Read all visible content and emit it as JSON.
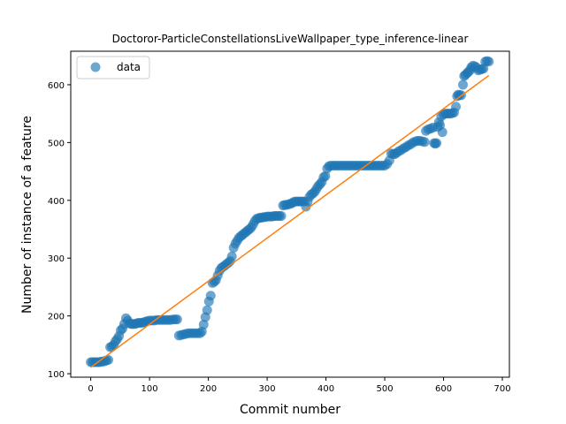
{
  "chart_data": {
    "type": "scatter",
    "title": "Doctoror-ParticleConstellationsLiveWallpaper_type_inference-linear",
    "xlabel": "Commit number",
    "ylabel": "Number of instance of a feature",
    "xlim": [
      -34,
      712
    ],
    "ylim": [
      94,
      658
    ],
    "xticks": [
      0,
      100,
      200,
      300,
      400,
      500,
      600,
      700
    ],
    "yticks": [
      100,
      200,
      300,
      400,
      500,
      600
    ],
    "legend": {
      "position": "top-left",
      "entries": [
        "data"
      ]
    },
    "colors": {
      "data": "#1f77b4",
      "fit": "#ff7f0e"
    },
    "series": [
      {
        "name": "data",
        "kind": "scatter",
        "points": [
          [
            0,
            120
          ],
          [
            3,
            120
          ],
          [
            6,
            120
          ],
          [
            9,
            120
          ],
          [
            12,
            120
          ],
          [
            15,
            120
          ],
          [
            18,
            121
          ],
          [
            21,
            121
          ],
          [
            24,
            122
          ],
          [
            27,
            123
          ],
          [
            30,
            124
          ],
          [
            33,
            146
          ],
          [
            36,
            147
          ],
          [
            39,
            150
          ],
          [
            42,
            156
          ],
          [
            45,
            160
          ],
          [
            48,
            165
          ],
          [
            51,
            175
          ],
          [
            54,
            178
          ],
          [
            57,
            186
          ],
          [
            60,
            196
          ],
          [
            63,
            192
          ],
          [
            66,
            187
          ],
          [
            69,
            186
          ],
          [
            72,
            186
          ],
          [
            75,
            186
          ],
          [
            78,
            187
          ],
          [
            81,
            188
          ],
          [
            84,
            188
          ],
          [
            87,
            188
          ],
          [
            90,
            189
          ],
          [
            93,
            190
          ],
          [
            96,
            191
          ],
          [
            100,
            192
          ],
          [
            104,
            192
          ],
          [
            108,
            192
          ],
          [
            112,
            193
          ],
          [
            116,
            193
          ],
          [
            120,
            193
          ],
          [
            124,
            193
          ],
          [
            128,
            193
          ],
          [
            132,
            193
          ],
          [
            136,
            193
          ],
          [
            140,
            194
          ],
          [
            144,
            194
          ],
          [
            147,
            194
          ],
          [
            150,
            166
          ],
          [
            154,
            167
          ],
          [
            158,
            168
          ],
          [
            162,
            169
          ],
          [
            166,
            170
          ],
          [
            170,
            170
          ],
          [
            174,
            170
          ],
          [
            178,
            170
          ],
          [
            182,
            170
          ],
          [
            186,
            170
          ],
          [
            189,
            173
          ],
          [
            192,
            185
          ],
          [
            195,
            198
          ],
          [
            198,
            210
          ],
          [
            201,
            225
          ],
          [
            204,
            235
          ],
          [
            207,
            257
          ],
          [
            210,
            259
          ],
          [
            213,
            262
          ],
          [
            216,
            270
          ],
          [
            219,
            278
          ],
          [
            222,
            283
          ],
          [
            225,
            285
          ],
          [
            228,
            287
          ],
          [
            231,
            290
          ],
          [
            234,
            292
          ],
          [
            237,
            295
          ],
          [
            240,
            303
          ],
          [
            243,
            318
          ],
          [
            246,
            325
          ],
          [
            249,
            330
          ],
          [
            252,
            335
          ],
          [
            255,
            338
          ],
          [
            258,
            340
          ],
          [
            261,
            343
          ],
          [
            264,
            345
          ],
          [
            267,
            348
          ],
          [
            270,
            350
          ],
          [
            273,
            353
          ],
          [
            276,
            358
          ],
          [
            279,
            364
          ],
          [
            282,
            368
          ],
          [
            285,
            369
          ],
          [
            288,
            370
          ],
          [
            291,
            370
          ],
          [
            294,
            371
          ],
          [
            297,
            371
          ],
          [
            300,
            372
          ],
          [
            303,
            372
          ],
          [
            306,
            372
          ],
          [
            309,
            372
          ],
          [
            312,
            373
          ],
          [
            315,
            373
          ],
          [
            318,
            373
          ],
          [
            321,
            373
          ],
          [
            324,
            373
          ],
          [
            327,
            391
          ],
          [
            330,
            392
          ],
          [
            333,
            392
          ],
          [
            336,
            393
          ],
          [
            339,
            394
          ],
          [
            342,
            395
          ],
          [
            345,
            397
          ],
          [
            348,
            398
          ],
          [
            351,
            398
          ],
          [
            354,
            398
          ],
          [
            357,
            398
          ],
          [
            360,
            398
          ],
          [
            363,
            398
          ],
          [
            366,
            389
          ],
          [
            369,
            398
          ],
          [
            372,
            406
          ],
          [
            375,
            410
          ],
          [
            378,
            412
          ],
          [
            381,
            415
          ],
          [
            384,
            420
          ],
          [
            387,
            425
          ],
          [
            390,
            428
          ],
          [
            393,
            432
          ],
          [
            396,
            440
          ],
          [
            399,
            442
          ],
          [
            402,
            455
          ],
          [
            405,
            459
          ],
          [
            408,
            460
          ],
          [
            412,
            460
          ],
          [
            416,
            460
          ],
          [
            420,
            460
          ],
          [
            424,
            460
          ],
          [
            428,
            460
          ],
          [
            432,
            460
          ],
          [
            436,
            460
          ],
          [
            440,
            460
          ],
          [
            444,
            460
          ],
          [
            448,
            460
          ],
          [
            452,
            460
          ],
          [
            456,
            460
          ],
          [
            460,
            460
          ],
          [
            464,
            460
          ],
          [
            468,
            460
          ],
          [
            472,
            460
          ],
          [
            476,
            460
          ],
          [
            480,
            460
          ],
          [
            484,
            460
          ],
          [
            488,
            460
          ],
          [
            492,
            460
          ],
          [
            496,
            460
          ],
          [
            500,
            460
          ],
          [
            504,
            463
          ],
          [
            508,
            469
          ],
          [
            511,
            481
          ],
          [
            514,
            480
          ],
          [
            517,
            480
          ],
          [
            520,
            482
          ],
          [
            524,
            485
          ],
          [
            528,
            487
          ],
          [
            532,
            490
          ],
          [
            536,
            492
          ],
          [
            540,
            495
          ],
          [
            544,
            497
          ],
          [
            548,
            500
          ],
          [
            552,
            502
          ],
          [
            556,
            503
          ],
          [
            560,
            503
          ],
          [
            564,
            502
          ],
          [
            568,
            501
          ],
          [
            570,
            520
          ],
          [
            574,
            523
          ],
          [
            578,
            524
          ],
          [
            582,
            526
          ],
          [
            584,
            499
          ],
          [
            586,
            498
          ],
          [
            588,
            499
          ],
          [
            590,
            527
          ],
          [
            592,
            535
          ],
          [
            594,
            530
          ],
          [
            596,
            545
          ],
          [
            598,
            518
          ],
          [
            600,
            549
          ],
          [
            603,
            550
          ],
          [
            606,
            550
          ],
          [
            609,
            550
          ],
          [
            612,
            550
          ],
          [
            615,
            551
          ],
          [
            618,
            552
          ],
          [
            621,
            562
          ],
          [
            623,
            580
          ],
          [
            625,
            583
          ],
          [
            627,
            582
          ],
          [
            630,
            582
          ],
          [
            633,
            600
          ],
          [
            635,
            615
          ],
          [
            637,
            617
          ],
          [
            640,
            620
          ],
          [
            642,
            622
          ],
          [
            645,
            625
          ],
          [
            647,
            630
          ],
          [
            650,
            633
          ],
          [
            653,
            632
          ],
          [
            656,
            630
          ],
          [
            659,
            625
          ],
          [
            662,
            626
          ],
          [
            665,
            627
          ],
          [
            668,
            628
          ],
          [
            671,
            640
          ],
          [
            674,
            641
          ],
          [
            677,
            640
          ]
        ]
      },
      {
        "name": "",
        "kind": "line",
        "points": [
          [
            0,
            111
          ],
          [
            677,
            616
          ]
        ]
      }
    ]
  }
}
